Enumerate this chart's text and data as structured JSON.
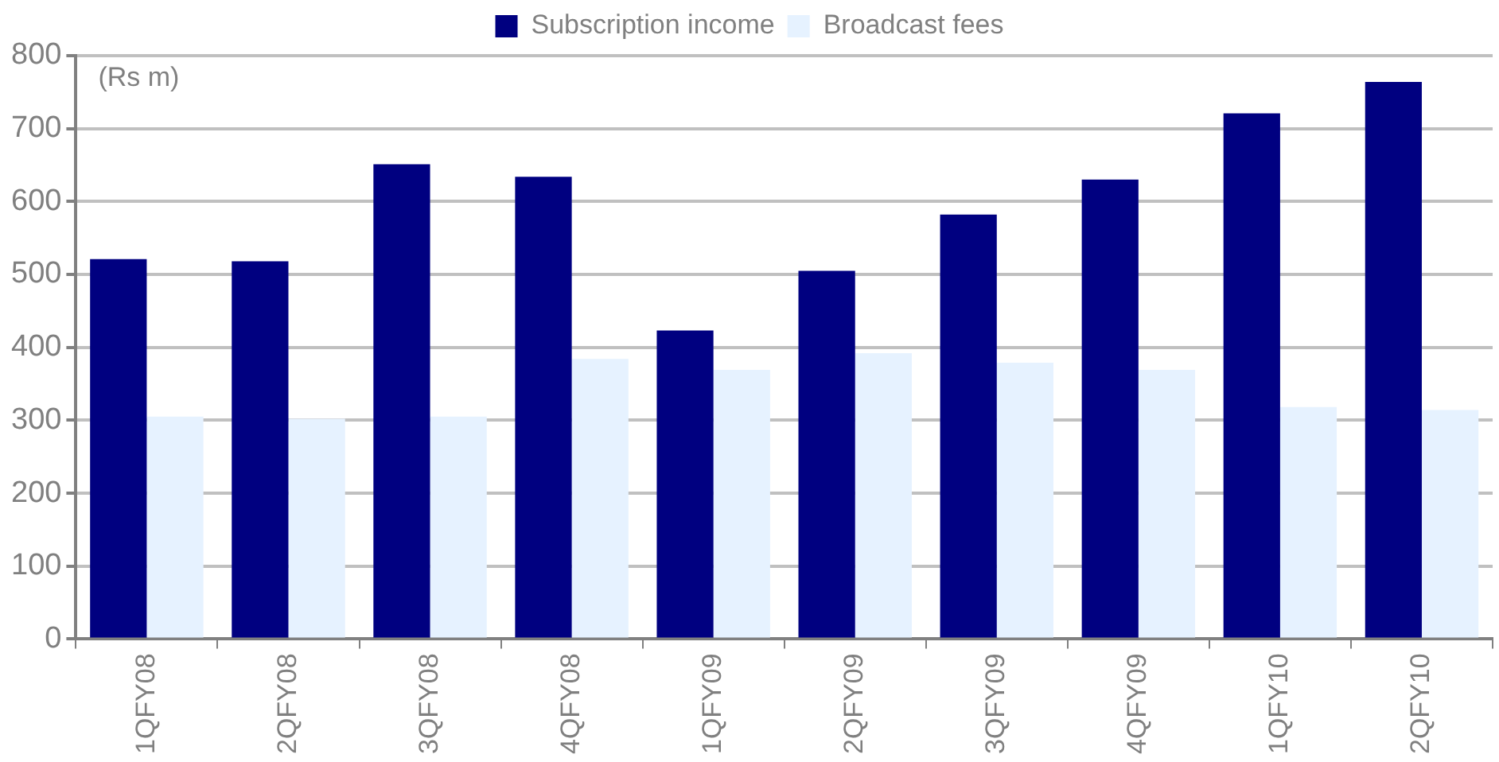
{
  "chart_data": {
    "type": "bar",
    "categories": [
      "1QFY08",
      "2QFY08",
      "3QFY08",
      "4QFY08",
      "1QFY09",
      "2QFY09",
      "3QFY09",
      "4QFY09",
      "1QFY10",
      "2QFY10"
    ],
    "series": [
      {
        "name": "Subscription income",
        "color": "#000080",
        "values": [
          521,
          518,
          651,
          634,
          423,
          505,
          582,
          630,
          721,
          764
        ]
      },
      {
        "name": "Broadcast fees",
        "color": "#e6f2ff",
        "values": [
          305,
          302,
          305,
          384,
          369,
          392,
          379,
          369,
          318,
          314
        ]
      }
    ],
    "ylim": [
      0,
      800
    ],
    "yticks": [
      0,
      100,
      200,
      300,
      400,
      500,
      600,
      700,
      800
    ],
    "annotations": [
      "(Rs m)"
    ],
    "grid": "y",
    "legend": "top"
  }
}
